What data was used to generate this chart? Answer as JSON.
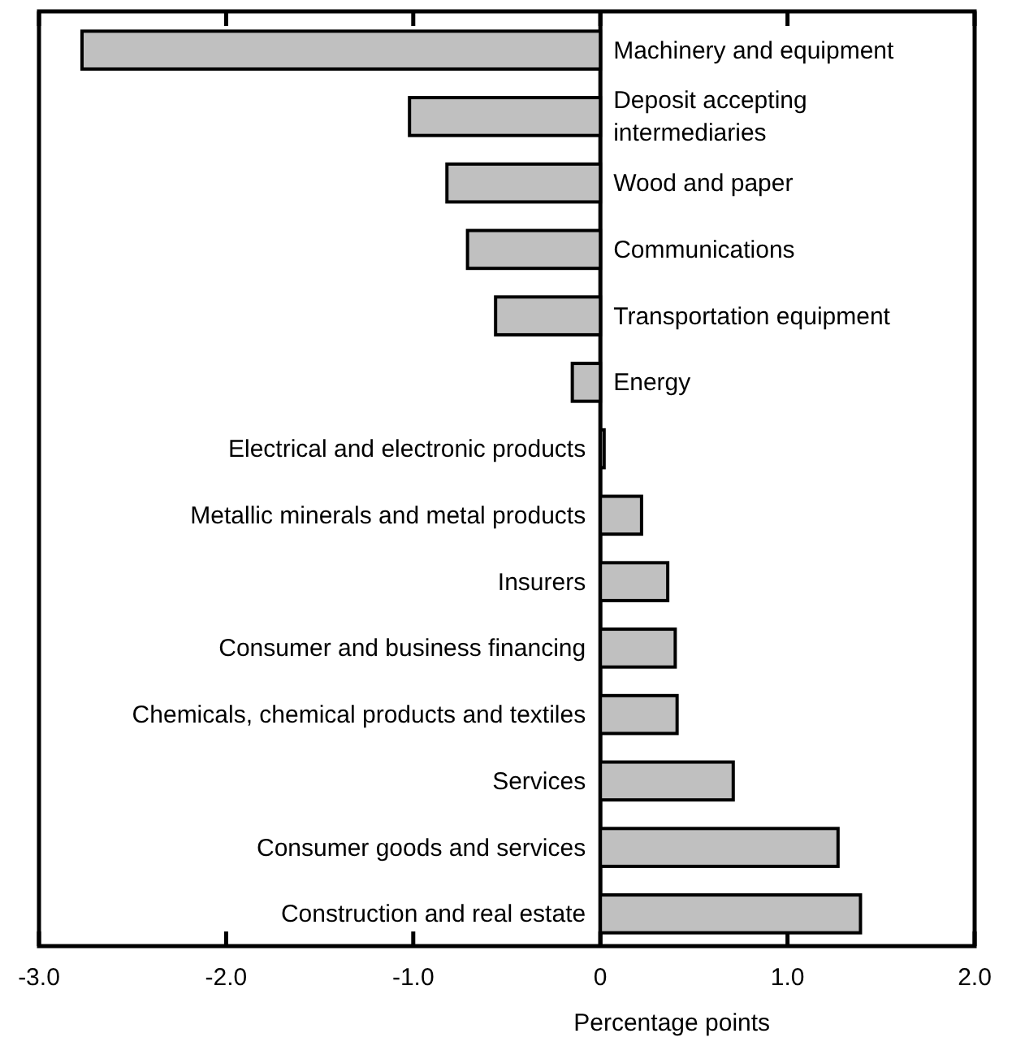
{
  "chart_data": {
    "type": "bar",
    "orientation": "horizontal",
    "xlabel": "Percentage points",
    "categories": [
      "Machinery and equipment",
      "Deposit accepting intermediaries",
      "Wood and paper",
      "Communications",
      "Transportation equipment",
      "Energy",
      "Electrical and electronic products",
      "Metallic minerals and metal products",
      "Insurers",
      "Consumer and business financing",
      "Chemicals, chemical products and textiles",
      "Services",
      "Consumer goods and services",
      "Construction and real estate"
    ],
    "values": [
      -2.77,
      -1.02,
      -0.82,
      -0.71,
      -0.56,
      -0.15,
      0.02,
      0.22,
      0.36,
      0.4,
      0.41,
      0.71,
      1.27,
      1.39
    ],
    "color": "#c0c0c0",
    "xlim": [
      -3,
      2
    ],
    "xticks": [
      {
        "value": -3,
        "label": "-3.0"
      },
      {
        "value": -2,
        "label": "-2.0"
      },
      {
        "value": -1,
        "label": "-1.0"
      },
      0,
      {
        "value": 1,
        "label": "1.0"
      },
      {
        "value": 2,
        "label": "2.0"
      }
    ],
    "grid": false
  }
}
